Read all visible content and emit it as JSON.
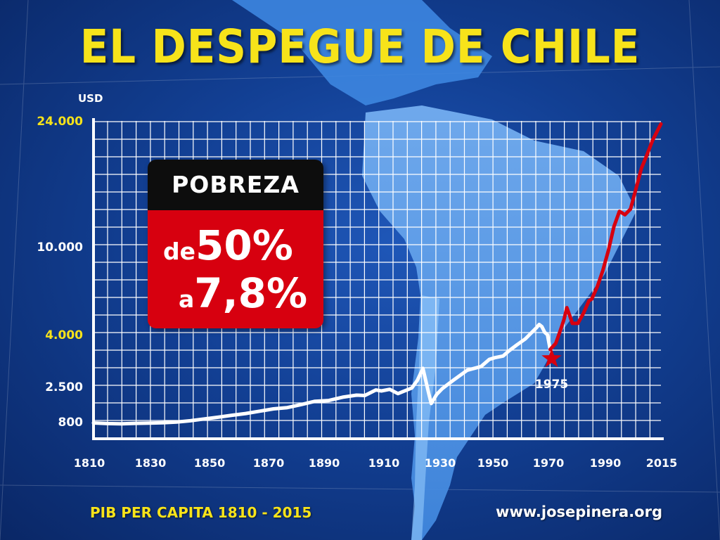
{
  "title": "EL DESPEGUE DE CHILE",
  "footer": {
    "subtitle": "PIB PER CAPITA 1810 - 2015",
    "website": "www.josepinera.org"
  },
  "poverty_box": {
    "header": "POBREZA",
    "from_prefix": "de",
    "from_value": "50%",
    "to_prefix": "a",
    "to_value": "7,8%"
  },
  "colors": {
    "title": "#f7e31a",
    "pre_1975_line": "#ffffff",
    "post_1975_line": "#d7000f",
    "grid": "#ffffff",
    "highlight_tick": "#f7e31a",
    "box_header": "#0d0d0d",
    "box_body": "#d7000f"
  },
  "chart_data": {
    "type": "line",
    "title": "EL DESPEGUE DE CHILE",
    "ylabel": "USD",
    "xlabel": "",
    "x_tick_labels": [
      "1810",
      "1830",
      "1850",
      "1870",
      "1890",
      "1910",
      "1930",
      "1950",
      "1970",
      "1990",
      "2015"
    ],
    "y_tick_labels": [
      {
        "label": "800",
        "value": 800,
        "highlight": false
      },
      {
        "label": "2.500",
        "value": 2500,
        "highlight": false
      },
      {
        "label": "4.000",
        "value": 4000,
        "highlight": true
      },
      {
        "label": "10.000",
        "value": 10000,
        "highlight": false
      },
      {
        "label": "24.000",
        "value": 24000,
        "highlight": true
      }
    ],
    "xlim": [
      1810,
      2015
    ],
    "grid": true,
    "annotations": [
      {
        "text": "1975",
        "x": 1975,
        "y": 2300,
        "marker": "star",
        "color": "#d7000f"
      }
    ],
    "series": [
      {
        "color": "#ffffff",
        "points": [
          [
            1810,
            750
          ],
          [
            1815,
            720
          ],
          [
            1820,
            710
          ],
          [
            1825,
            730
          ],
          [
            1830,
            740
          ],
          [
            1835,
            760
          ],
          [
            1840,
            790
          ],
          [
            1845,
            830
          ],
          [
            1850,
            880
          ],
          [
            1855,
            930
          ],
          [
            1860,
            990
          ],
          [
            1865,
            1050
          ],
          [
            1870,
            1130
          ],
          [
            1875,
            1220
          ],
          [
            1880,
            1270
          ],
          [
            1885,
            1400
          ],
          [
            1890,
            1560
          ],
          [
            1895,
            1600
          ],
          [
            1900,
            1780
          ],
          [
            1905,
            1900
          ],
          [
            1908,
            1880
          ],
          [
            1912,
            2250
          ],
          [
            1914,
            2180
          ],
          [
            1917,
            2300
          ],
          [
            1920,
            2000
          ],
          [
            1922,
            2150
          ],
          [
            1925,
            2400
          ],
          [
            1927,
            2650
          ],
          [
            1929,
            2950
          ],
          [
            1931,
            2100
          ],
          [
            1932,
            1450
          ],
          [
            1934,
            1950
          ],
          [
            1936,
            2350
          ],
          [
            1940,
            2650
          ],
          [
            1945,
            2900
          ],
          [
            1950,
            3000
          ],
          [
            1953,
            3200
          ],
          [
            1955,
            3250
          ],
          [
            1958,
            3300
          ],
          [
            1960,
            3450
          ],
          [
            1963,
            3650
          ],
          [
            1966,
            3850
          ],
          [
            1970,
            4300
          ],
          [
            1971,
            4450
          ],
          [
            1972,
            4350
          ],
          [
            1973,
            4100
          ],
          [
            1974,
            4000
          ],
          [
            1975,
            3500
          ]
        ]
      },
      {
        "color": "#d7000f",
        "points": [
          [
            1975,
            3500
          ],
          [
            1977,
            3700
          ],
          [
            1979,
            4300
          ],
          [
            1980,
            4700
          ],
          [
            1981,
            5300
          ],
          [
            1982,
            4900
          ],
          [
            1983,
            4500
          ],
          [
            1985,
            4500
          ],
          [
            1987,
            5000
          ],
          [
            1989,
            5700
          ],
          [
            1990,
            5800
          ],
          [
            1992,
            6600
          ],
          [
            1994,
            7800
          ],
          [
            1996,
            9600
          ],
          [
            1998,
            11500
          ],
          [
            2000,
            12800
          ],
          [
            2002,
            12500
          ],
          [
            2004,
            13000
          ],
          [
            2006,
            15000
          ],
          [
            2008,
            17300
          ],
          [
            2010,
            19000
          ],
          [
            2012,
            21000
          ],
          [
            2015,
            23500
          ]
        ]
      }
    ]
  }
}
